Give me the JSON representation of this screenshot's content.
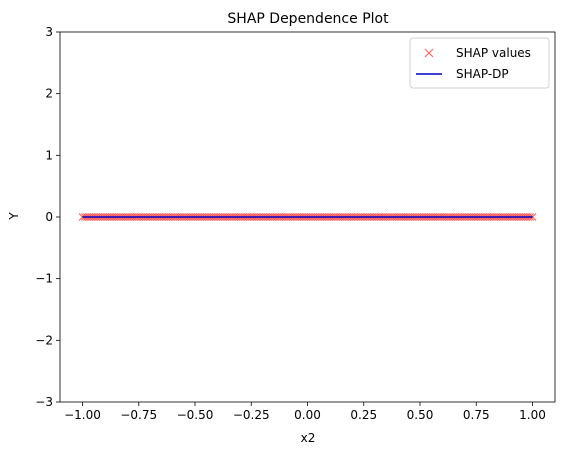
{
  "chart_data": {
    "type": "scatter",
    "title": "SHAP Dependence Plot",
    "xlabel": "x2",
    "ylabel": "Y",
    "xlim": [
      -1.1,
      1.1
    ],
    "ylim": [
      -3,
      3
    ],
    "xticks": [
      -1.0,
      -0.75,
      -0.5,
      -0.25,
      0.0,
      0.25,
      0.5,
      0.75,
      1.0
    ],
    "xtick_labels": [
      "−1.00",
      "−0.75",
      "−0.50",
      "−0.25",
      "0.00",
      "0.25",
      "0.50",
      "0.75",
      "1.00"
    ],
    "yticks": [
      -3,
      -2,
      -1,
      0,
      1,
      2,
      3
    ],
    "ytick_labels": [
      "−3",
      "−2",
      "−1",
      "0",
      "1",
      "2",
      "3"
    ],
    "grid": false,
    "legend_position": "top-right",
    "series": [
      {
        "name": "SHAP values",
        "kind": "scatter",
        "marker": "x",
        "color": "#ff4c4c",
        "x_range": [
          -1.0,
          1.0
        ],
        "y": 0,
        "point_count": 200
      },
      {
        "name": "SHAP-DP",
        "kind": "line",
        "color": "#0000cc",
        "x": [
          -1.0,
          1.0
        ],
        "y": [
          0,
          0
        ]
      }
    ]
  }
}
